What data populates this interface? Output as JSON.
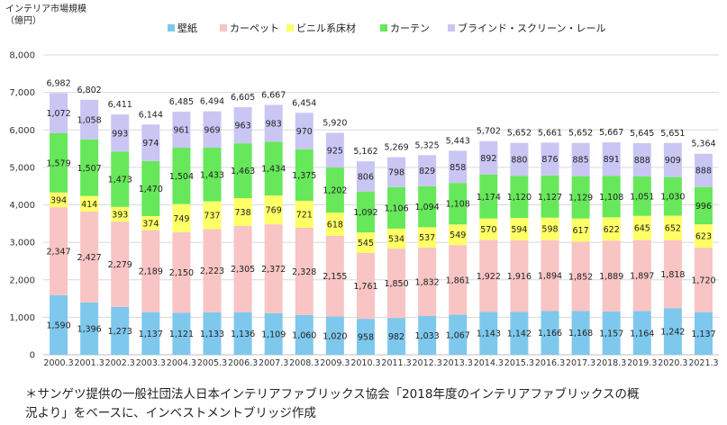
{
  "unit_label": "インテリア市場規模\n（億円）",
  "footnote": "＊サンゲツ提供の一般社団法人日本インテリアファブリックス協会「2018年度のインテリアファブリックスの概況より」をベースに、インベストメントブリッジ作成",
  "colors": {
    "wallpaper": "#7ec8ed",
    "carpet": "#f8c4c4",
    "vinyl": "#ffff66",
    "curtain": "#66e85a",
    "blind": "#c9c6f4"
  },
  "chart_data": {
    "type": "bar",
    "stacked": true,
    "ylim": [
      0,
      8000
    ],
    "yticks": [
      "0",
      "1,000",
      "2,000",
      "3,000",
      "4,000",
      "5,000",
      "6,000",
      "7,000",
      "8,000"
    ],
    "grid": true,
    "legend": "top",
    "categories": [
      "2000.3",
      "2001.3",
      "2002.3",
      "2003.3",
      "2004.3",
      "2005.3",
      "2006.3",
      "2007.3",
      "2008.3",
      "2009.3",
      "2010.3",
      "2011.3",
      "2012.3",
      "2013.3",
      "2014.3",
      "2015.3",
      "2016.3",
      "2017.3",
      "2018.3",
      "2019.3",
      "2020.3",
      "2021.3"
    ],
    "series": [
      {
        "name": "壁紙",
        "color_key": "wallpaper",
        "values": [
          1590,
          1396,
          1273,
          1137,
          1121,
          1133,
          1136,
          1109,
          1060,
          1020,
          958,
          982,
          1033,
          1067,
          1143,
          1142,
          1166,
          1168,
          1157,
          1164,
          1242,
          1137
        ]
      },
      {
        "name": "カーペット",
        "color_key": "carpet",
        "values": [
          2347,
          2427,
          2279,
          2189,
          2150,
          2223,
          2305,
          2372,
          2328,
          2155,
          1761,
          1850,
          1832,
          1861,
          1922,
          1916,
          1894,
          1852,
          1889,
          1897,
          1818,
          1720
        ]
      },
      {
        "name": "ビニル系床材",
        "color_key": "vinyl",
        "values": [
          394,
          414,
          393,
          374,
          749,
          737,
          738,
          769,
          721,
          618,
          545,
          534,
          537,
          549,
          570,
          594,
          598,
          617,
          622,
          645,
          652,
          623
        ]
      },
      {
        "name": "カーテン",
        "color_key": "curtain",
        "values": [
          1579,
          1507,
          1473,
          1470,
          1504,
          1433,
          1463,
          1434,
          1375,
          1202,
          1092,
          1106,
          1094,
          1108,
          1174,
          1120,
          1127,
          1129,
          1108,
          1051,
          1030,
          996
        ]
      },
      {
        "name": "ブラインド・スクリーン・レール",
        "color_key": "blind",
        "values": [
          1072,
          1058,
          993,
          974,
          961,
          969,
          963,
          983,
          970,
          925,
          806,
          798,
          829,
          858,
          892,
          880,
          876,
          885,
          891,
          888,
          909,
          888
        ]
      }
    ],
    "value_labels": {
      "wallpaper": [
        "1,590",
        "1,396",
        "1,273",
        "1,137",
        "1,121",
        "1,133",
        "1,136",
        "1,109",
        "1,060",
        "1,020",
        "958",
        "982",
        "1,033",
        "1,067",
        "1,143",
        "1,142",
        "1,166",
        "1,168",
        "1,157",
        "1,164",
        "1,242",
        "1,137"
      ],
      "carpet": [
        "2,347",
        "2,427",
        "2,279",
        "2,189",
        "2,150",
        "2,223",
        "2,305",
        "2,372",
        "2,328",
        "2,155",
        "1,761",
        "1,850",
        "1,832",
        "1,861",
        "1,922",
        "1,916",
        "1,894",
        "1,852",
        "1,889",
        "1,897",
        "1,818",
        "1,720"
      ],
      "vinyl": [
        "394",
        "414",
        "393",
        "374",
        "749",
        "737",
        "738",
        "769",
        "721",
        "618",
        "545",
        "534",
        "537",
        "549",
        "570",
        "594",
        "598",
        "617",
        "622",
        "645",
        "652",
        "623"
      ],
      "curtain": [
        "1,579",
        "1,507",
        "1,473",
        "1,470",
        "1,504",
        "1,433",
        "1,463",
        "1,434",
        "1,375",
        "1,202",
        "1,092",
        "1,106",
        "1,094",
        "1,108",
        "1,174",
        "1,120",
        "1,127",
        "1,129",
        "1,108",
        "1,051",
        "1,030",
        "996"
      ],
      "blind": [
        "1,072",
        "1,058",
        "993",
        "974",
        "961",
        "969",
        "963",
        "983",
        "970",
        "925",
        "806",
        "798",
        "829",
        "858",
        "892",
        "880",
        "876",
        "885",
        "891",
        "888",
        "909",
        "888"
      ]
    },
    "totals": [
      6982,
      6802,
      6411,
      6144,
      6485,
      6494,
      6605,
      6667,
      6454,
      5920,
      5162,
      5269,
      5325,
      5443,
      5702,
      5652,
      5661,
      5652,
      5667,
      5645,
      5651,
      5364
    ],
    "total_labels": [
      "6,982",
      "6,802",
      "6,411",
      "6,144",
      "6,485",
      "6,494",
      "6,605",
      "6,667",
      "6,454",
      "5,920",
      "5,162",
      "5,269",
      "5,325",
      "5,443",
      "5,702",
      "5,652",
      "5,661",
      "5,652",
      "5,667",
      "5,645",
      "5,651",
      "5,364"
    ]
  }
}
